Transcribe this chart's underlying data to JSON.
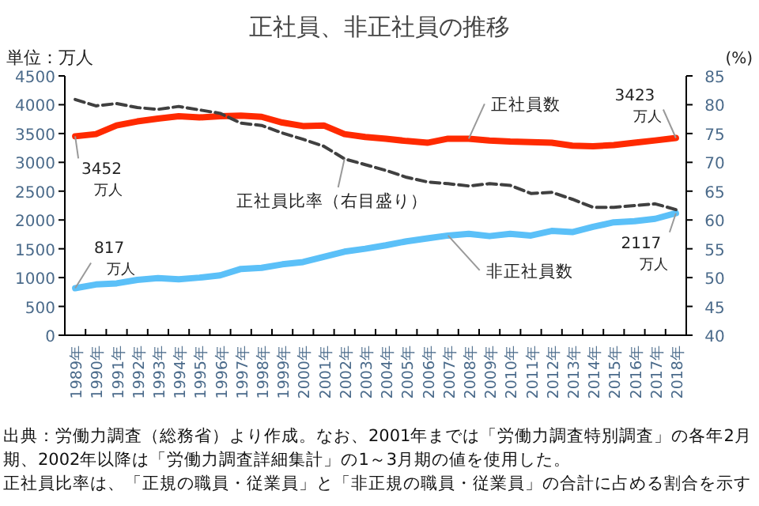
{
  "chart_data": {
    "type": "line",
    "title": "正社員、非正社員の推移",
    "ylabel": "単位：万人",
    "y2label": "(%)",
    "categories": [
      "1989年",
      "1990年",
      "1991年",
      "1992年",
      "1993年",
      "1994年",
      "1995年",
      "1996年",
      "1997年",
      "1998年",
      "1999年",
      "2000年",
      "2001年",
      "2002年",
      "2003年",
      "2004年",
      "2005年",
      "2006年",
      "2007年",
      "2008年",
      "2009年",
      "2010年",
      "2011年",
      "2012年",
      "2013年",
      "2014年",
      "2015年",
      "2016年",
      "2017年",
      "2018年"
    ],
    "series": [
      {
        "name": "正社員数",
        "color": "#ff2a00",
        "line_style": "solid",
        "values": [
          3452,
          3490,
          3640,
          3710,
          3760,
          3800,
          3780,
          3800,
          3810,
          3790,
          3690,
          3630,
          3640,
          3490,
          3440,
          3410,
          3370,
          3340,
          3410,
          3410,
          3380,
          3360,
          3350,
          3340,
          3290,
          3280,
          3300,
          3340,
          3380,
          3423
        ]
      },
      {
        "name": "非正社員数",
        "color": "#5bc0f8",
        "line_style": "solid",
        "values": [
          817,
          880,
          900,
          960,
          990,
          970,
          1000,
          1040,
          1150,
          1170,
          1230,
          1270,
          1360,
          1450,
          1500,
          1560,
          1630,
          1680,
          1730,
          1760,
          1720,
          1760,
          1730,
          1810,
          1790,
          1880,
          1960,
          1980,
          2020,
          2117
        ]
      },
      {
        "name": "正社員比率（右目盛り）",
        "color": "#404040",
        "line_style": "dashed",
        "axis": "y2",
        "values": [
          80.9,
          79.8,
          80.2,
          79.5,
          79.2,
          79.7,
          79.1,
          78.5,
          76.8,
          76.4,
          75.1,
          74.0,
          72.8,
          70.6,
          69.6,
          68.6,
          67.4,
          66.6,
          66.3,
          65.9,
          66.3,
          66.0,
          64.6,
          64.8,
          63.6,
          62.2,
          62.2,
          62.5,
          62.8,
          61.8
        ]
      }
    ],
    "ylim": [
      0,
      4500
    ],
    "yticks": [
      0,
      500,
      1000,
      1500,
      2000,
      2500,
      3000,
      3500,
      4000,
      4500
    ],
    "y2lim": [
      40,
      85
    ],
    "y2ticks": [
      40,
      45,
      50,
      55,
      60,
      65,
      70,
      75,
      80,
      85
    ],
    "grid": false,
    "legend": false,
    "annotations": [
      {
        "text": "3452\n万人",
        "x": "1989年",
        "y": 3452
      },
      {
        "text": "817\n万人",
        "x": "1989年",
        "y": 817
      },
      {
        "text": "3423\n万人",
        "x": "2018年",
        "y": 3423
      },
      {
        "text": "2117\n万人",
        "x": "2018年",
        "y": 2117
      },
      "出典：労働力調査（総務省）より作成。なお、2001年までは「労働力調査特別調査」の各年2月期、2002年以降は「労働力調査詳細集計」の1～3月期の値を使用した。",
      "正社員比率は、「正規の職員・従業員」と「非正規の職員・従業員」の合計に占める割合を示す"
    ]
  }
}
